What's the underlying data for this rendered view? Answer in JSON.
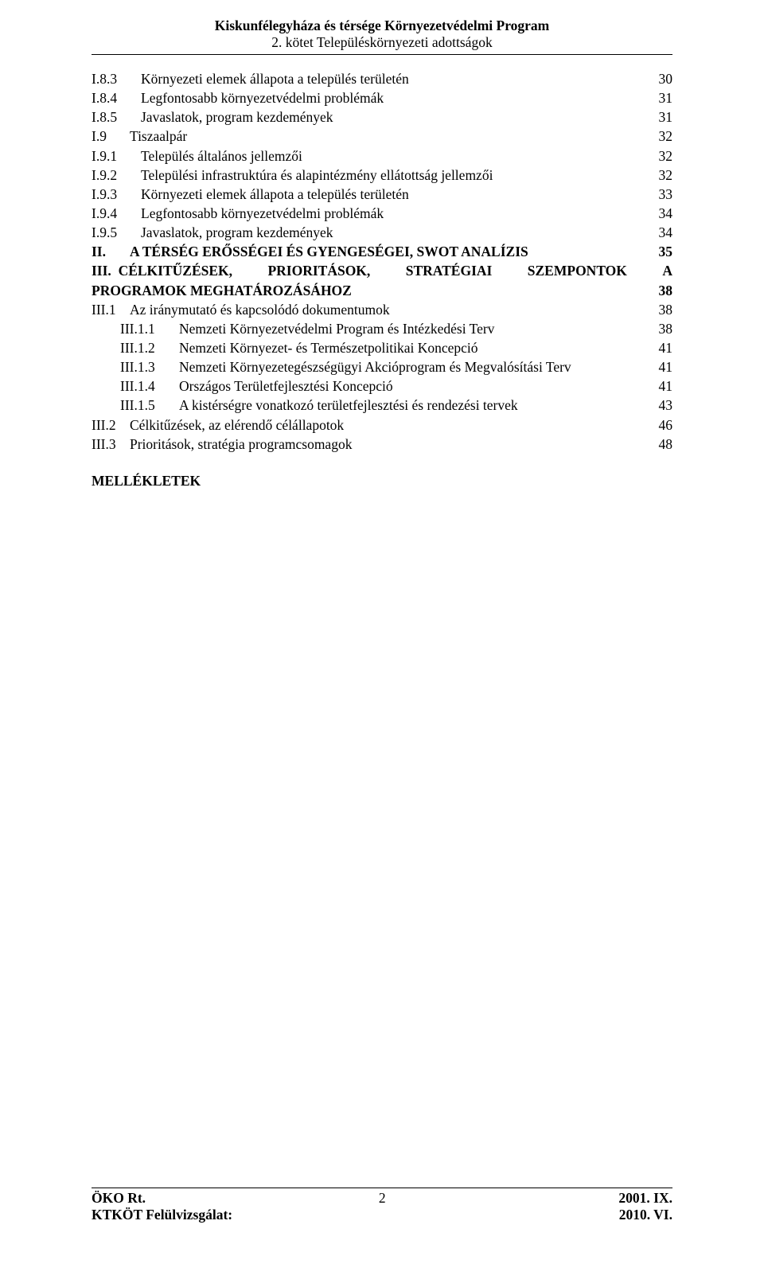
{
  "header": {
    "title_bold": "Kiskunfélegyháza és térsége Környezetvédelmi Program",
    "subtitle": "2. kötet Településkörnyezeti adottságok"
  },
  "toc": [
    {
      "indent": 1,
      "bold": false,
      "num": "I.8.3",
      "label": "Környezeti elemek állapota a település területén",
      "page": "30"
    },
    {
      "indent": 1,
      "bold": false,
      "num": "I.8.4",
      "label": "Legfontosabb környezetvédelmi problémák",
      "page": "31"
    },
    {
      "indent": 1,
      "bold": false,
      "num": "I.8.5",
      "label": "Javaslatok, program kezdemények",
      "page": "31"
    },
    {
      "indent": 0,
      "bold": false,
      "num": "I.9",
      "label": "Tiszaalpár",
      "page": "32"
    },
    {
      "indent": 1,
      "bold": false,
      "num": "I.9.1",
      "label": "Település általános jellemzői",
      "page": "32"
    },
    {
      "indent": 1,
      "bold": false,
      "num": "I.9.2",
      "label": "Települési infrastruktúra és alapintézmény ellátottság jellemzői",
      "page": "32"
    },
    {
      "indent": 1,
      "bold": false,
      "num": "I.9.3",
      "label": "Környezeti elemek állapota a település területén",
      "page": "33"
    },
    {
      "indent": 1,
      "bold": false,
      "num": "I.9.4",
      "label": "Legfontosabb környezetvédelmi problémák",
      "page": "34"
    },
    {
      "indent": 1,
      "bold": false,
      "num": "I.9.5",
      "label": "Javaslatok, program kezdemények",
      "page": "34"
    },
    {
      "indent": 0,
      "bold": true,
      "num": "II.",
      "label": "A TÉRSÉG ERŐSSÉGEI ÉS GYENGESÉGEI, SWOT ANALÍZIS",
      "page": "35"
    }
  ],
  "section3": {
    "num": "III.",
    "line1_words": [
      "CÉLKITŰZÉSEK,",
      "PRIORITÁSOK,",
      "STRATÉGIAI",
      "SZEMPONTOK",
      "A"
    ],
    "line2_label": "PROGRAMOK MEGHATÁROZÁSÁHOZ",
    "page": "38"
  },
  "toc_after": [
    {
      "indent": 0,
      "bold": false,
      "num": "III.1",
      "label": "Az iránymutató és kapcsolódó dokumentumok",
      "page": "38"
    },
    {
      "indent": 2,
      "bold": false,
      "num": "III.1.1",
      "label": "Nemzeti Környezetvédelmi Program és Intézkedési Terv",
      "page": "38"
    },
    {
      "indent": 2,
      "bold": false,
      "num": "III.1.2",
      "label": "Nemzeti Környezet- és Természetpolitikai Koncepció",
      "page": "41"
    },
    {
      "indent": 2,
      "bold": false,
      "num": "III.1.3",
      "label": "Nemzeti Környezetegészségügyi Akcióprogram és Megvalósítási Terv",
      "page": "41"
    },
    {
      "indent": 2,
      "bold": false,
      "num": "III.1.4",
      "label": "Országos Területfejlesztési Koncepció",
      "page": "41"
    },
    {
      "indent": 2,
      "bold": false,
      "num": "III.1.5",
      "label": "A kistérségre vonatkozó területfejlesztési és rendezési tervek",
      "page": "43"
    },
    {
      "indent": 0,
      "bold": false,
      "num": "III.2",
      "label": "Célkitűzések, az elérendő célállapotok",
      "page": "46"
    },
    {
      "indent": 0,
      "bold": false,
      "num": "III.3",
      "label": "Prioritások, stratégia programcsomagok",
      "page": "48"
    }
  ],
  "appendix": "MELLÉKLETEK",
  "footer": {
    "left1": "ÖKO Rt.",
    "left2": "KTKÖT Felülvizsgálat:",
    "page_number": "2",
    "right1": "2001. IX.",
    "right2": "2010. VI."
  }
}
